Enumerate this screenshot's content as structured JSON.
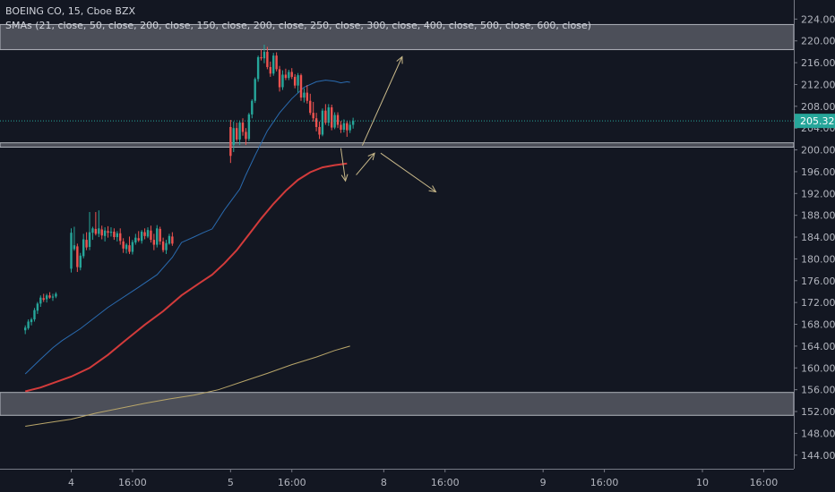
{
  "legend": {
    "symbol_line": "BOEING CO, 15, Cboe BZX",
    "indicator_line": "SMAs (21, close, 50, close, 200, close, 150, close, 200, close, 250, close, 300, close, 400, close, 500, close, 600, close)"
  },
  "chart_data": {
    "type": "candlestick",
    "y_axis": {
      "range": [
        141.5,
        227.5
      ],
      "ticks": [
        "224.00",
        "220.00",
        "216.00",
        "212.00",
        "208.00",
        "204.00",
        "200.00",
        "196.00",
        "192.00",
        "188.00",
        "184.00",
        "180.00",
        "176.00",
        "172.00",
        "168.00",
        "164.00",
        "160.00",
        "156.00",
        "152.00",
        "148.00",
        "144.00"
      ],
      "last_price_label": "205.32",
      "last_price": 205.32
    },
    "x_axis": {
      "ticks": [
        {
          "label": "4",
          "bar": 0
        },
        {
          "label": "16:00",
          "bar": 20
        },
        {
          "label": "5",
          "bar": 52
        },
        {
          "label": "16:00",
          "bar": 72
        },
        {
          "label": "8",
          "bar": 102
        },
        {
          "label": "16:00",
          "bar": 122
        },
        {
          "label": "9",
          "bar": 154
        },
        {
          "label": "16:00",
          "bar": 174
        },
        {
          "label": "10",
          "bar": 206
        },
        {
          "label": "16:00",
          "bar": 226
        }
      ]
    },
    "zones": [
      {
        "name": "upper-resistance-zone",
        "top": 223.0,
        "bottom": 218.4
      },
      {
        "name": "support-zone",
        "top": 201.3,
        "bottom": 200.5
      },
      {
        "name": "lower-support-zone",
        "top": 155.5,
        "bottom": 151.3
      }
    ],
    "candles": [
      [
        -15,
        166.9,
        167.8,
        166.2,
        167.4
      ],
      [
        -14,
        167.3,
        168.9,
        167.0,
        168.5
      ],
      [
        -13,
        168.4,
        169.2,
        167.8,
        168.9
      ],
      [
        -12,
        168.9,
        171.0,
        168.5,
        170.6
      ],
      [
        -11,
        170.5,
        172.1,
        169.9,
        171.8
      ],
      [
        -10,
        171.8,
        173.3,
        171.2,
        172.9
      ],
      [
        -9,
        172.8,
        173.6,
        172.1,
        172.5
      ],
      [
        -8,
        172.6,
        173.6,
        172.0,
        173.3
      ],
      [
        -7,
        173.3,
        173.9,
        172.7,
        172.9
      ],
      [
        -6,
        172.9,
        173.6,
        172.3,
        173.1
      ],
      [
        -5,
        173.1,
        173.9,
        172.8,
        173.6
      ],
      [
        0,
        178.2,
        185.6,
        177.5,
        184.8
      ],
      [
        1,
        181.8,
        185.9,
        181.5,
        182.5
      ],
      [
        2,
        182.3,
        182.8,
        177.6,
        178.5
      ],
      [
        3,
        178.4,
        181.1,
        177.9,
        180.6
      ],
      [
        4,
        180.5,
        184.6,
        180.1,
        183.6
      ],
      [
        5,
        183.5,
        184.9,
        181.6,
        182.1
      ],
      [
        6,
        182.2,
        188.6,
        181.6,
        184.9
      ],
      [
        7,
        184.8,
        185.9,
        183.5,
        185.6
      ],
      [
        8,
        185.5,
        188.6,
        184.3,
        184.6
      ],
      [
        9,
        184.6,
        188.9,
        184.0,
        185.6
      ],
      [
        10,
        185.4,
        186.1,
        183.6,
        184.3
      ],
      [
        11,
        184.2,
        185.8,
        183.2,
        185.2
      ],
      [
        12,
        185.1,
        186.0,
        183.9,
        184.8
      ],
      [
        13,
        184.8,
        185.8,
        184.1,
        185.0
      ],
      [
        14,
        185.0,
        185.6,
        183.5,
        184.0
      ],
      [
        15,
        184.0,
        185.1,
        183.2,
        184.7
      ],
      [
        16,
        184.7,
        185.6,
        182.6,
        183.3
      ],
      [
        17,
        183.2,
        183.8,
        181.1,
        181.9
      ],
      [
        18,
        181.8,
        182.9,
        181.0,
        182.6
      ],
      [
        19,
        182.5,
        184.1,
        180.9,
        181.3
      ],
      [
        20,
        181.3,
        183.5,
        180.8,
        183.1
      ],
      [
        21,
        183.0,
        184.6,
        182.6,
        183.9
      ],
      [
        22,
        183.8,
        185.1,
        183.1,
        183.4
      ],
      [
        23,
        183.3,
        185.3,
        182.8,
        185.0
      ],
      [
        24,
        184.9,
        185.6,
        183.6,
        184.2
      ],
      [
        25,
        184.1,
        185.8,
        183.8,
        185.3
      ],
      [
        26,
        185.2,
        186.1,
        183.0,
        183.5
      ],
      [
        27,
        183.5,
        184.6,
        181.6,
        182.6
      ],
      [
        28,
        182.6,
        186.2,
        182.1,
        185.6
      ],
      [
        29,
        185.5,
        185.9,
        182.6,
        183.2
      ],
      [
        30,
        183.2,
        183.9,
        181.2,
        181.6
      ],
      [
        31,
        181.6,
        183.5,
        180.9,
        182.9
      ],
      [
        32,
        182.8,
        184.6,
        182.6,
        184.2
      ],
      [
        33,
        184.1,
        184.9,
        182.4,
        182.8
      ],
      [
        52,
        204.2,
        205.5,
        197.6,
        198.9
      ],
      [
        53,
        200.9,
        205.2,
        199.6,
        204.0
      ],
      [
        54,
        204.0,
        205.0,
        201.5,
        201.9
      ],
      [
        55,
        201.9,
        205.4,
        200.9,
        205.0
      ],
      [
        56,
        205.0,
        205.8,
        202.6,
        203.3
      ],
      [
        57,
        203.3,
        204.0,
        200.9,
        202.0
      ],
      [
        58,
        202.0,
        206.8,
        201.6,
        206.5
      ],
      [
        59,
        206.5,
        209.3,
        205.8,
        209.0
      ],
      [
        60,
        209.0,
        213.3,
        208.6,
        213.0
      ],
      [
        61,
        213.0,
        217.3,
        212.5,
        217.0
      ],
      [
        62,
        217.0,
        218.4,
        216.4,
        216.8
      ],
      [
        63,
        216.8,
        219.3,
        215.9,
        218.0
      ],
      [
        64,
        218.0,
        218.9,
        214.8,
        215.2
      ],
      [
        65,
        215.2,
        216.2,
        213.4,
        214.0
      ],
      [
        66,
        214.0,
        217.8,
        213.6,
        217.3
      ],
      [
        67,
        217.3,
        217.9,
        214.4,
        214.8
      ],
      [
        68,
        214.8,
        215.4,
        210.7,
        211.5
      ],
      [
        69,
        211.5,
        214.6,
        211.0,
        213.8
      ],
      [
        70,
        213.8,
        214.9,
        212.8,
        213.2
      ],
      [
        71,
        213.2,
        214.7,
        212.8,
        214.3
      ],
      [
        72,
        214.3,
        215.0,
        213.0,
        213.4
      ],
      [
        73,
        213.4,
        213.9,
        211.3,
        211.8
      ],
      [
        74,
        211.8,
        214.1,
        210.5,
        213.7
      ],
      [
        75,
        213.7,
        214.0,
        209.0,
        209.6
      ],
      [
        76,
        209.6,
        211.3,
        208.7,
        210.5
      ],
      [
        77,
        210.5,
        211.9,
        208.5,
        209.0
      ],
      [
        78,
        209.0,
        210.3,
        206.4,
        206.8
      ],
      [
        79,
        206.8,
        208.8,
        205.2,
        205.8
      ],
      [
        80,
        205.8,
        206.8,
        203.4,
        204.2
      ],
      [
        81,
        204.2,
        205.2,
        202.0,
        202.8
      ],
      [
        82,
        202.8,
        207.6,
        202.5,
        207.2
      ],
      [
        83,
        207.2,
        208.4,
        204.6,
        205.0
      ],
      [
        84,
        205.0,
        208.4,
        204.4,
        207.8
      ],
      [
        85,
        207.8,
        208.3,
        203.6,
        204.1
      ],
      [
        86,
        204.1,
        206.9,
        203.8,
        206.4
      ],
      [
        87,
        206.4,
        206.9,
        204.0,
        204.6
      ],
      [
        88,
        204.6,
        205.3,
        203.1,
        203.7
      ],
      [
        89,
        203.7,
        205.6,
        203.2,
        204.9
      ],
      [
        90,
        204.9,
        205.3,
        202.4,
        203.6
      ],
      [
        91,
        203.6,
        205.2,
        203.1,
        204.6
      ],
      [
        92,
        204.6,
        205.9,
        203.9,
        205.32
      ]
    ],
    "series": [
      {
        "line": "sma-short",
        "color": "#2a6bb0",
        "points": [
          [
            -15,
            158.9
          ],
          [
            -10,
            161.6
          ],
          [
            -6,
            163.7
          ],
          [
            -3,
            165.0
          ],
          [
            3,
            167.2
          ],
          [
            12,
            171.1
          ],
          [
            22,
            174.8
          ],
          [
            28,
            177.1
          ],
          [
            33,
            180.3
          ],
          [
            36,
            183.0
          ],
          [
            40,
            184.0
          ],
          [
            43,
            184.8
          ],
          [
            46,
            185.5
          ],
          [
            50,
            189.0
          ],
          [
            55,
            192.8
          ],
          [
            57,
            195.4
          ],
          [
            60,
            199.0
          ],
          [
            64,
            203.5
          ],
          [
            68,
            206.8
          ],
          [
            72,
            209.4
          ],
          [
            76,
            211.5
          ],
          [
            80,
            212.5
          ],
          [
            83,
            212.8
          ],
          [
            86,
            212.6
          ],
          [
            88,
            212.3
          ],
          [
            90,
            212.5
          ],
          [
            91,
            212.4
          ]
        ]
      },
      {
        "line": "sma-mid",
        "color": "#d23b3b",
        "points": [
          [
            -15,
            155.7
          ],
          [
            -10,
            156.4
          ],
          [
            -5,
            157.4
          ],
          [
            0,
            158.4
          ],
          [
            6,
            160.0
          ],
          [
            12,
            162.4
          ],
          [
            18,
            165.2
          ],
          [
            24,
            167.9
          ],
          [
            30,
            170.4
          ],
          [
            36,
            173.3
          ],
          [
            42,
            175.6
          ],
          [
            46,
            177.1
          ],
          [
            50,
            179.2
          ],
          [
            54,
            181.6
          ],
          [
            58,
            184.5
          ],
          [
            62,
            187.4
          ],
          [
            66,
            190.1
          ],
          [
            70,
            192.5
          ],
          [
            74,
            194.5
          ],
          [
            78,
            195.9
          ],
          [
            82,
            196.8
          ],
          [
            86,
            197.2
          ],
          [
            90,
            197.5
          ]
        ]
      },
      {
        "line": "sma-long",
        "color": "#b9a66a",
        "points": [
          [
            -15,
            149.3
          ],
          [
            -8,
            149.9
          ],
          [
            0,
            150.6
          ],
          [
            8,
            151.7
          ],
          [
            16,
            152.6
          ],
          [
            24,
            153.5
          ],
          [
            32,
            154.3
          ],
          [
            40,
            155.0
          ],
          [
            48,
            156.0
          ],
          [
            56,
            157.5
          ],
          [
            64,
            159.0
          ],
          [
            72,
            160.6
          ],
          [
            80,
            162.0
          ],
          [
            86,
            163.2
          ],
          [
            91,
            164.0
          ]
        ]
      }
    ],
    "annotation_arrows": [
      {
        "from": [
          95,
          200.8
        ],
        "to": [
          108,
          217.1
        ]
      },
      {
        "from": [
          88,
          200.3
        ],
        "to": [
          89.5,
          194.3
        ]
      },
      {
        "from": [
          93,
          195.4
        ],
        "to": [
          99,
          199.4
        ]
      },
      {
        "from": [
          101,
          199.4
        ],
        "to": [
          119,
          192.3
        ]
      }
    ]
  }
}
